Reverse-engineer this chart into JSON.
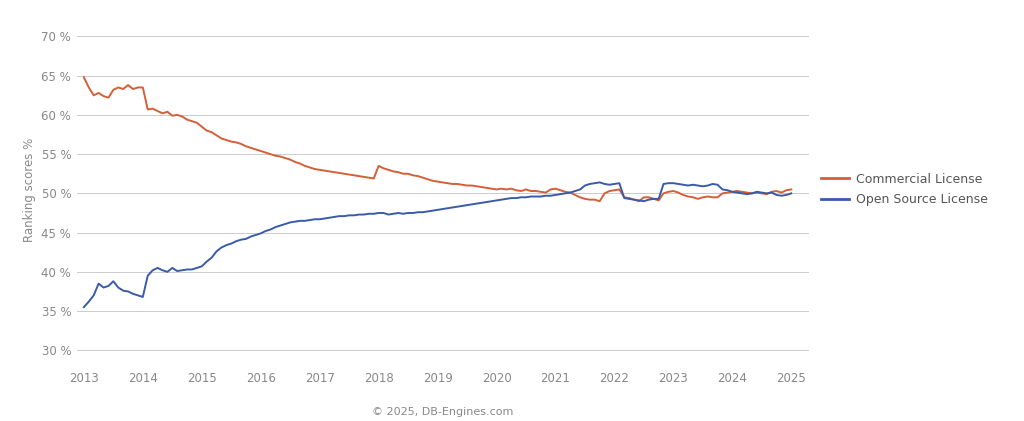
{
  "commercial": {
    "x": [
      2013.0,
      2013.083,
      2013.167,
      2013.25,
      2013.333,
      2013.417,
      2013.5,
      2013.583,
      2013.667,
      2013.75,
      2013.833,
      2013.917,
      2014.0,
      2014.083,
      2014.167,
      2014.25,
      2014.333,
      2014.417,
      2014.5,
      2014.583,
      2014.667,
      2014.75,
      2014.833,
      2014.917,
      2015.0,
      2015.083,
      2015.167,
      2015.25,
      2015.333,
      2015.417,
      2015.5,
      2015.583,
      2015.667,
      2015.75,
      2015.833,
      2015.917,
      2016.0,
      2016.083,
      2016.167,
      2016.25,
      2016.333,
      2016.417,
      2016.5,
      2016.583,
      2016.667,
      2016.75,
      2016.833,
      2016.917,
      2017.0,
      2017.083,
      2017.167,
      2017.25,
      2017.333,
      2017.417,
      2017.5,
      2017.583,
      2017.667,
      2017.75,
      2017.833,
      2017.917,
      2018.0,
      2018.083,
      2018.167,
      2018.25,
      2018.333,
      2018.417,
      2018.5,
      2018.583,
      2018.667,
      2018.75,
      2018.833,
      2018.917,
      2019.0,
      2019.083,
      2019.167,
      2019.25,
      2019.333,
      2019.417,
      2019.5,
      2019.583,
      2019.667,
      2019.75,
      2019.833,
      2019.917,
      2020.0,
      2020.083,
      2020.167,
      2020.25,
      2020.333,
      2020.417,
      2020.5,
      2020.583,
      2020.667,
      2020.75,
      2020.833,
      2020.917,
      2021.0,
      2021.083,
      2021.167,
      2021.25,
      2021.333,
      2021.417,
      2021.5,
      2021.583,
      2021.667,
      2021.75,
      2021.833,
      2021.917,
      2022.0,
      2022.083,
      2022.167,
      2022.25,
      2022.333,
      2022.417,
      2022.5,
      2022.583,
      2022.667,
      2022.75,
      2022.833,
      2022.917,
      2023.0,
      2023.083,
      2023.167,
      2023.25,
      2023.333,
      2023.417,
      2023.5,
      2023.583,
      2023.667,
      2023.75,
      2023.833,
      2023.917,
      2024.0,
      2024.083,
      2024.167,
      2024.25,
      2024.333,
      2024.417,
      2024.5,
      2024.583,
      2024.667,
      2024.75,
      2024.833,
      2024.917,
      2025.0
    ],
    "y": [
      64.8,
      63.5,
      62.5,
      62.8,
      62.4,
      62.2,
      63.2,
      63.5,
      63.3,
      63.8,
      63.3,
      63.5,
      63.5,
      60.7,
      60.8,
      60.5,
      60.2,
      60.4,
      59.9,
      60.0,
      59.8,
      59.4,
      59.2,
      59.0,
      58.5,
      58.0,
      57.8,
      57.4,
      57.0,
      56.8,
      56.6,
      56.5,
      56.3,
      56.0,
      55.8,
      55.6,
      55.4,
      55.2,
      55.0,
      54.8,
      54.7,
      54.5,
      54.3,
      54.0,
      53.8,
      53.5,
      53.3,
      53.1,
      53.0,
      52.9,
      52.8,
      52.7,
      52.6,
      52.5,
      52.4,
      52.3,
      52.2,
      52.1,
      52.0,
      51.9,
      53.5,
      53.2,
      53.0,
      52.8,
      52.7,
      52.5,
      52.5,
      52.3,
      52.2,
      52.0,
      51.8,
      51.6,
      51.5,
      51.4,
      51.3,
      51.2,
      51.2,
      51.1,
      51.0,
      51.0,
      50.9,
      50.8,
      50.7,
      50.6,
      50.5,
      50.6,
      50.5,
      50.6,
      50.4,
      50.3,
      50.5,
      50.3,
      50.3,
      50.2,
      50.1,
      50.5,
      50.6,
      50.4,
      50.2,
      50.1,
      49.8,
      49.5,
      49.3,
      49.2,
      49.2,
      49.0,
      50.0,
      50.3,
      50.4,
      50.5,
      49.5,
      49.4,
      49.2,
      49.0,
      49.5,
      49.5,
      49.3,
      49.1,
      50.0,
      50.2,
      50.3,
      50.1,
      49.8,
      49.6,
      49.5,
      49.3,
      49.5,
      49.6,
      49.5,
      49.5,
      50.0,
      50.1,
      50.2,
      50.3,
      50.2,
      50.1,
      50.0,
      50.1,
      50.0,
      49.9,
      50.2,
      50.3,
      50.1,
      50.4,
      50.5
    ]
  },
  "opensource": {
    "x": [
      2013.0,
      2013.083,
      2013.167,
      2013.25,
      2013.333,
      2013.417,
      2013.5,
      2013.583,
      2013.667,
      2013.75,
      2013.833,
      2013.917,
      2014.0,
      2014.083,
      2014.167,
      2014.25,
      2014.333,
      2014.417,
      2014.5,
      2014.583,
      2014.667,
      2014.75,
      2014.833,
      2014.917,
      2015.0,
      2015.083,
      2015.167,
      2015.25,
      2015.333,
      2015.417,
      2015.5,
      2015.583,
      2015.667,
      2015.75,
      2015.833,
      2015.917,
      2016.0,
      2016.083,
      2016.167,
      2016.25,
      2016.333,
      2016.417,
      2016.5,
      2016.583,
      2016.667,
      2016.75,
      2016.833,
      2016.917,
      2017.0,
      2017.083,
      2017.167,
      2017.25,
      2017.333,
      2017.417,
      2017.5,
      2017.583,
      2017.667,
      2017.75,
      2017.833,
      2017.917,
      2018.0,
      2018.083,
      2018.167,
      2018.25,
      2018.333,
      2018.417,
      2018.5,
      2018.583,
      2018.667,
      2018.75,
      2018.833,
      2018.917,
      2019.0,
      2019.083,
      2019.167,
      2019.25,
      2019.333,
      2019.417,
      2019.5,
      2019.583,
      2019.667,
      2019.75,
      2019.833,
      2019.917,
      2020.0,
      2020.083,
      2020.167,
      2020.25,
      2020.333,
      2020.417,
      2020.5,
      2020.583,
      2020.667,
      2020.75,
      2020.833,
      2020.917,
      2021.0,
      2021.083,
      2021.167,
      2021.25,
      2021.333,
      2021.417,
      2021.5,
      2021.583,
      2021.667,
      2021.75,
      2021.833,
      2021.917,
      2022.0,
      2022.083,
      2022.167,
      2022.25,
      2022.333,
      2022.417,
      2022.5,
      2022.583,
      2022.667,
      2022.75,
      2022.833,
      2022.917,
      2023.0,
      2023.083,
      2023.167,
      2023.25,
      2023.333,
      2023.417,
      2023.5,
      2023.583,
      2023.667,
      2023.75,
      2023.833,
      2023.917,
      2024.0,
      2024.083,
      2024.167,
      2024.25,
      2024.333,
      2024.417,
      2024.5,
      2024.583,
      2024.667,
      2024.75,
      2024.833,
      2024.917,
      2025.0
    ],
    "y": [
      35.5,
      36.2,
      37.0,
      38.5,
      38.0,
      38.2,
      38.8,
      38.0,
      37.6,
      37.5,
      37.2,
      37.0,
      36.8,
      39.5,
      40.2,
      40.5,
      40.2,
      40.0,
      40.5,
      40.1,
      40.2,
      40.3,
      40.3,
      40.5,
      40.7,
      41.3,
      41.8,
      42.6,
      43.1,
      43.4,
      43.6,
      43.9,
      44.1,
      44.2,
      44.5,
      44.7,
      44.9,
      45.2,
      45.4,
      45.7,
      45.9,
      46.1,
      46.3,
      46.4,
      46.5,
      46.5,
      46.6,
      46.7,
      46.7,
      46.8,
      46.9,
      47.0,
      47.1,
      47.1,
      47.2,
      47.2,
      47.3,
      47.3,
      47.4,
      47.4,
      47.5,
      47.5,
      47.3,
      47.4,
      47.5,
      47.4,
      47.5,
      47.5,
      47.6,
      47.6,
      47.7,
      47.8,
      47.9,
      48.0,
      48.1,
      48.2,
      48.3,
      48.4,
      48.5,
      48.6,
      48.7,
      48.8,
      48.9,
      49.0,
      49.1,
      49.2,
      49.3,
      49.4,
      49.4,
      49.5,
      49.5,
      49.6,
      49.6,
      49.6,
      49.7,
      49.7,
      49.8,
      49.9,
      50.0,
      50.1,
      50.3,
      50.5,
      51.0,
      51.2,
      51.3,
      51.4,
      51.2,
      51.1,
      51.2,
      51.3,
      49.4,
      49.3,
      49.2,
      49.1,
      49.0,
      49.2,
      49.3,
      49.3,
      51.2,
      51.3,
      51.3,
      51.2,
      51.1,
      51.0,
      51.1,
      51.0,
      50.9,
      51.0,
      51.2,
      51.1,
      50.5,
      50.4,
      50.2,
      50.1,
      50.0,
      49.9,
      50.0,
      50.2,
      50.1,
      50.0,
      50.1,
      49.8,
      49.7,
      49.8,
      50.0
    ]
  },
  "commercial_color": "#d45f38",
  "opensource_color": "#3a5baa",
  "background_color": "#ffffff",
  "grid_color": "#cccccc",
  "ylabel": "Ranking scores %",
  "xlabel_credit": "© 2025, DB-Engines.com",
  "legend_labels": [
    "Commercial License",
    "Open Source License"
  ],
  "yticks": [
    30,
    35,
    40,
    45,
    50,
    55,
    60,
    65,
    70
  ],
  "xticks": [
    2013,
    2014,
    2015,
    2016,
    2017,
    2018,
    2019,
    2020,
    2021,
    2022,
    2023,
    2024,
    2025
  ],
  "ylim": [
    28.5,
    72.5
  ],
  "xlim": [
    2012.88,
    2025.3
  ],
  "linewidth": 1.4,
  "tick_fontsize": 8.5,
  "ylabel_fontsize": 8.5,
  "legend_fontsize": 9,
  "credit_fontsize": 8
}
